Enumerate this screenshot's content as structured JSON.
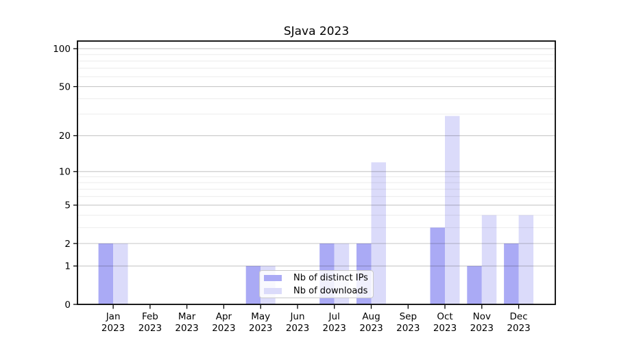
{
  "chart_data": {
    "type": "bar",
    "title": "SJava 2023",
    "categories": [
      "Jan 2023",
      "Feb 2023",
      "Mar 2023",
      "Apr 2023",
      "May 2023",
      "Jun 2023",
      "Jul 2023",
      "Aug 2023",
      "Sep 2023",
      "Oct 2023",
      "Nov 2023",
      "Dec 2023"
    ],
    "series": [
      {
        "name": "Nb of distinct IPs",
        "color": "#aaaaf5",
        "values": [
          2,
          0,
          0,
          0,
          1,
          0,
          2,
          2,
          0,
          3,
          1,
          2
        ]
      },
      {
        "name": "Nb of downloads",
        "color": "#dbdbfa",
        "values": [
          2,
          0,
          0,
          0,
          1,
          0,
          2,
          12,
          0,
          29,
          4,
          4
        ]
      }
    ],
    "xlabel": "",
    "ylabel": "",
    "yscale": "log10(1+x)",
    "ylim": [
      0,
      115
    ],
    "y_major_ticks": [
      0,
      1,
      2,
      5,
      10,
      20,
      50,
      100
    ],
    "y_minor_ticks": [
      3,
      4,
      6,
      7,
      8,
      9,
      30,
      40,
      60,
      70,
      80,
      90
    ],
    "grid": true,
    "legend_position": "lower center"
  }
}
